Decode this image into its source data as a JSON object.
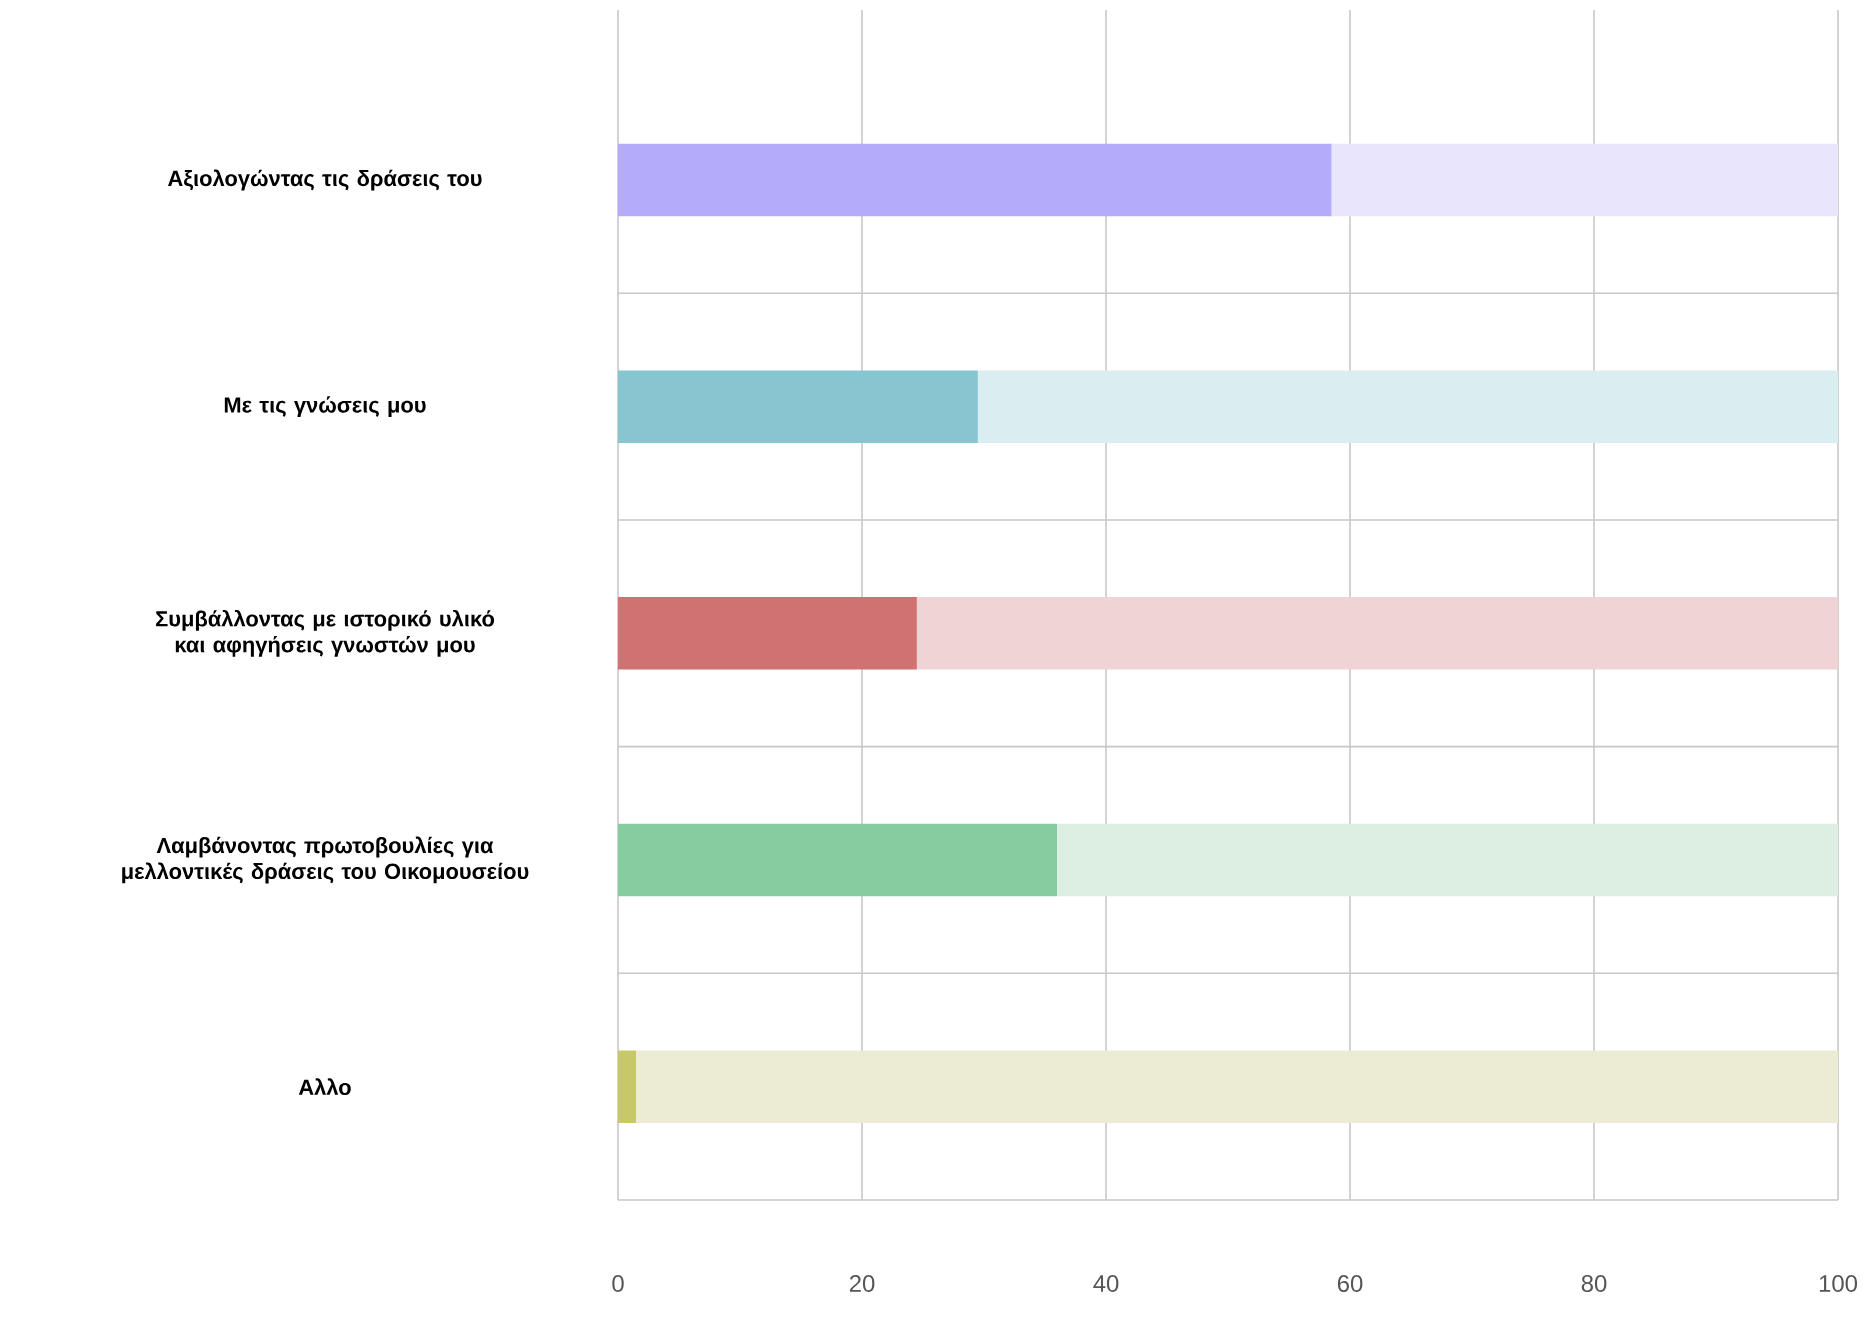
{
  "chart_data": {
    "type": "bar",
    "orientation": "horizontal",
    "stacked": true,
    "categories": [
      "Αξιολογώντας τις δράσεις του",
      "Με τις γνώσεις μου",
      "Συμβάλλοντας με ιστορικό υλικό και αφηγήσεις γνωστών μου",
      "Λαμβάνοντας πρωτοβουλίες για μελλοντικές δράσεις του Οικομουσείου",
      "Αλλο"
    ],
    "series": [
      {
        "values": [
          58.5,
          29.5,
          24.5,
          36,
          1.5
        ],
        "colors": [
          "#b4acfa",
          "#87c5d1",
          "#d17272",
          "#87cba0",
          "#c7c86a"
        ]
      },
      {
        "values": [
          41.5,
          70.5,
          75.5,
          64,
          98.5
        ],
        "colors": [
          "#e8e5fc",
          "#daedf1",
          "#f0d3d4",
          "#dcefe2",
          "#ececd4"
        ]
      }
    ],
    "xlim": [
      0,
      100
    ],
    "xticks": [
      0,
      20,
      40,
      60,
      80,
      100
    ],
    "grid": true
  }
}
